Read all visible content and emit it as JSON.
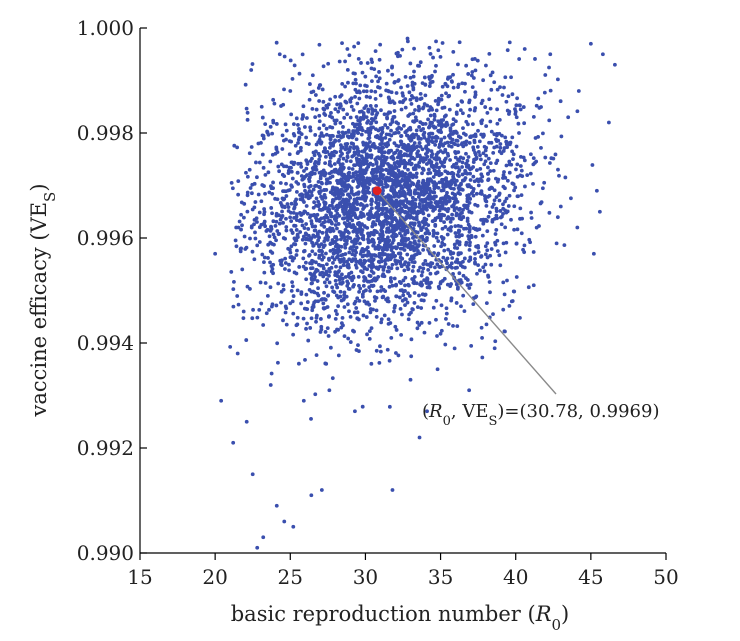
{
  "chart_data": {
    "type": "scatter",
    "title": "",
    "xlabel": "basic reproduction number (R0)",
    "ylabel": "vaccine efficacy (VES)",
    "xlim": [
      15,
      50
    ],
    "ylim": [
      0.99,
      1.0
    ],
    "xticks": [
      15,
      20,
      25,
      30,
      35,
      40,
      45,
      50
    ],
    "yticks": [
      "0.990",
      "0.992",
      "0.994",
      "0.996",
      "0.998",
      "1.000"
    ],
    "grid": false,
    "colors": {
      "points": "#3a4fae",
      "highlight": "#e02020",
      "leader": "#8a8a8a"
    },
    "series": [
      {
        "color": "#3a4fae",
        "sample_description": "dense cloud of ~4000 parameter samples; centered near R0≈31, VES≈0.9968",
        "points": [
          [
            20.0,
            0.9957
          ],
          [
            20.4,
            0.9929
          ],
          [
            21.2,
            0.9921
          ],
          [
            21.5,
            0.9938
          ],
          [
            22.1,
            0.9925
          ],
          [
            22.5,
            0.9915
          ],
          [
            22.8,
            0.9901
          ],
          [
            23.2,
            0.9903
          ],
          [
            24.1,
            0.9909
          ],
          [
            24.6,
            0.9906
          ],
          [
            25.2,
            0.9905
          ],
          [
            26.4,
            0.9911
          ],
          [
            27.1,
            0.9912
          ],
          [
            31.8,
            0.9912
          ],
          [
            33.6,
            0.9922
          ],
          [
            22.4,
            0.9992
          ],
          [
            24.3,
            0.9995
          ],
          [
            28.8,
            0.9996
          ],
          [
            32.8,
            0.9998
          ],
          [
            45.0,
            0.9997
          ],
          [
            45.8,
            0.9995
          ],
          [
            46.6,
            0.9993
          ],
          [
            44.2,
            0.9988
          ],
          [
            42.3,
            0.9995
          ],
          [
            40.6,
            0.9996
          ],
          [
            46.2,
            0.9982
          ],
          [
            45.4,
            0.9969
          ],
          [
            45.6,
            0.9965
          ],
          [
            44.1,
            0.9962
          ],
          [
            45.2,
            0.9957
          ],
          [
            43.0,
            0.9966
          ],
          [
            41.2,
            0.9951
          ],
          [
            39.8,
            0.9948
          ],
          [
            38.6,
            0.9939
          ],
          [
            36.9,
            0.9931
          ],
          [
            34.8,
            0.9935
          ],
          [
            34.1,
            0.9927
          ],
          [
            33.0,
            0.9933
          ],
          [
            29.3,
            0.9927
          ],
          [
            27.6,
            0.9931
          ],
          [
            25.9,
            0.9929
          ],
          [
            23.7,
            0.9932
          ],
          [
            21.9,
            0.9946
          ],
          [
            21.4,
            0.9962
          ],
          [
            22.3,
            0.9973
          ],
          [
            23.1,
            0.9985
          ],
          [
            25.0,
            0.9988
          ],
          [
            26.5,
            0.9991
          ]
        ]
      }
    ],
    "highlight_point": {
      "x": 30.78,
      "y": 0.9969,
      "color": "#e02020"
    },
    "annotation": {
      "label_prefix": "(",
      "label_r": "R",
      "label_r_sub": "0",
      "label_mid": ", VE",
      "label_ve_sub": "S",
      "label_suffix": ")=(30.78, 0.9969)",
      "anchor": {
        "x": 30.78,
        "y": 0.9969
      }
    }
  },
  "labels": {
    "x_axis_main": "basic reproduction number (",
    "x_axis_var": "R",
    "x_axis_sub": "0",
    "x_axis_close": ")",
    "y_axis_main": "vaccine efficacy (VE",
    "y_axis_sub": "S",
    "y_axis_close": ")"
  }
}
